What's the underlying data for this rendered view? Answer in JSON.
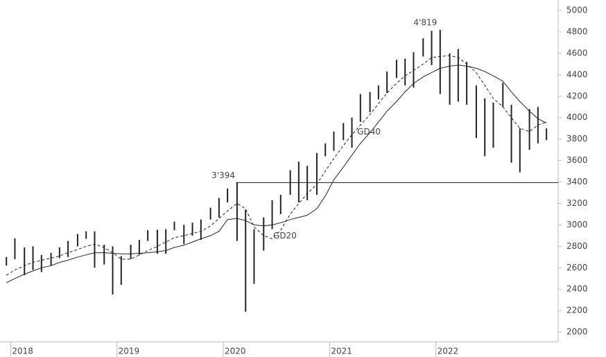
{
  "chart_data": {
    "type": "hilo",
    "x": [
      2017.96,
      2018.04,
      2018.13,
      2018.21,
      2018.29,
      2018.38,
      2018.46,
      2018.54,
      2018.63,
      2018.71,
      2018.79,
      2018.88,
      2018.96,
      2019.04,
      2019.13,
      2019.21,
      2019.29,
      2019.38,
      2019.46,
      2019.54,
      2019.63,
      2019.71,
      2019.79,
      2019.88,
      2019.96,
      2020.04,
      2020.13,
      2020.21,
      2020.29,
      2020.38,
      2020.46,
      2020.54,
      2020.63,
      2020.71,
      2020.79,
      2020.88,
      2020.96,
      2021.04,
      2021.13,
      2021.21,
      2021.29,
      2021.38,
      2021.46,
      2021.54,
      2021.63,
      2021.71,
      2021.79,
      2021.88,
      2021.96,
      2022.04,
      2022.13,
      2022.21,
      2022.29,
      2022.38,
      2022.46,
      2022.54,
      2022.63,
      2022.71,
      2022.79,
      2022.88,
      2022.96,
      2023.04
    ],
    "low": [
      2620,
      2680,
      2530,
      2580,
      2560,
      2620,
      2690,
      2700,
      2800,
      2870,
      2600,
      2630,
      2350,
      2440,
      2680,
      2720,
      2850,
      2730,
      2730,
      2950,
      2820,
      2900,
      2860,
      3050,
      3070,
      3210,
      2850,
      2190,
      2450,
      2760,
      2960,
      3100,
      3280,
      3210,
      3230,
      3280,
      3640,
      3690,
      3790,
      3720,
      3960,
      4050,
      4170,
      4230,
      4370,
      4300,
      4280,
      4570,
      4490,
      4220,
      4120,
      4150,
      4120,
      3810,
      3640,
      3720,
      4100,
      3580,
      3490,
      3700,
      3760,
      3790
    ],
    "high": [
      2700,
      2875,
      2790,
      2800,
      2720,
      2740,
      2790,
      2850,
      2915,
      2940,
      2940,
      2815,
      2800,
      2710,
      2815,
      2860,
      2950,
      2955,
      2960,
      3030,
      3000,
      3020,
      3050,
      3160,
      3250,
      3340,
      3394,
      3140,
      2960,
      3070,
      3230,
      3280,
      3510,
      3590,
      3550,
      3670,
      3760,
      3870,
      3950,
      4000,
      4220,
      4240,
      4300,
      4430,
      4540,
      4550,
      4610,
      4740,
      4810,
      4819,
      4600,
      4640,
      4520,
      4300,
      4180,
      4140,
      4325,
      4120,
      3900,
      4080,
      4100,
      3900
    ],
    "color": "#222222",
    "series": [
      {
        "name": "GD20",
        "dash": true,
        "color": "#222222",
        "values": [
          2530,
          2580,
          2620,
          2650,
          2670,
          2690,
          2710,
          2740,
          2770,
          2800,
          2820,
          2790,
          2740,
          2680,
          2680,
          2720,
          2760,
          2800,
          2840,
          2880,
          2900,
          2920,
          2940,
          2990,
          3060,
          3130,
          3200,
          3150,
          2980,
          2900,
          2870,
          2950,
          3100,
          3200,
          3290,
          3380,
          3500,
          3620,
          3740,
          3840,
          3930,
          4030,
          4130,
          4230,
          4320,
          4390,
          4440,
          4500,
          4560,
          4570,
          4580,
          4560,
          4500,
          4420,
          4300,
          4180,
          4100,
          4000,
          3900,
          3870,
          3930,
          3960
        ]
      },
      {
        "name": "GD40",
        "dash": false,
        "color": "#222222",
        "values": [
          2460,
          2500,
          2540,
          2570,
          2600,
          2620,
          2650,
          2670,
          2700,
          2720,
          2740,
          2740,
          2735,
          2730,
          2730,
          2735,
          2740,
          2750,
          2760,
          2790,
          2810,
          2840,
          2870,
          2900,
          2940,
          3050,
          3060,
          3040,
          3000,
          2990,
          3000,
          3020,
          3050,
          3070,
          3090,
          3150,
          3270,
          3420,
          3540,
          3650,
          3760,
          3860,
          3960,
          4060,
          4150,
          4240,
          4320,
          4380,
          4420,
          4460,
          4480,
          4490,
          4480,
          4460,
          4430,
          4390,
          4340,
          4240,
          4150,
          4060,
          3990,
          3950
        ]
      }
    ],
    "reference_line": {
      "value": 3394,
      "start_x": 2020.12
    },
    "annotations": [
      {
        "text": "4'819",
        "x": 2021.9,
        "y": 4819
      },
      {
        "text": "3'394",
        "x": 2020.0,
        "y": 3394
      },
      {
        "text": "GD40",
        "x": 2021.37,
        "y": 3800
      },
      {
        "text": "GD20",
        "x": 2020.58,
        "y": 2830
      }
    ],
    "xlim": [
      2017.9,
      2023.15
    ],
    "xticks": [
      2018,
      2019,
      2020,
      2021,
      2022
    ],
    "ylim": [
      1910,
      5097
    ],
    "yticks": [
      2000,
      2200,
      2400,
      2600,
      2800,
      3000,
      3200,
      3400,
      3600,
      3800,
      4000,
      4200,
      4400,
      4600,
      4800,
      5000
    ]
  }
}
